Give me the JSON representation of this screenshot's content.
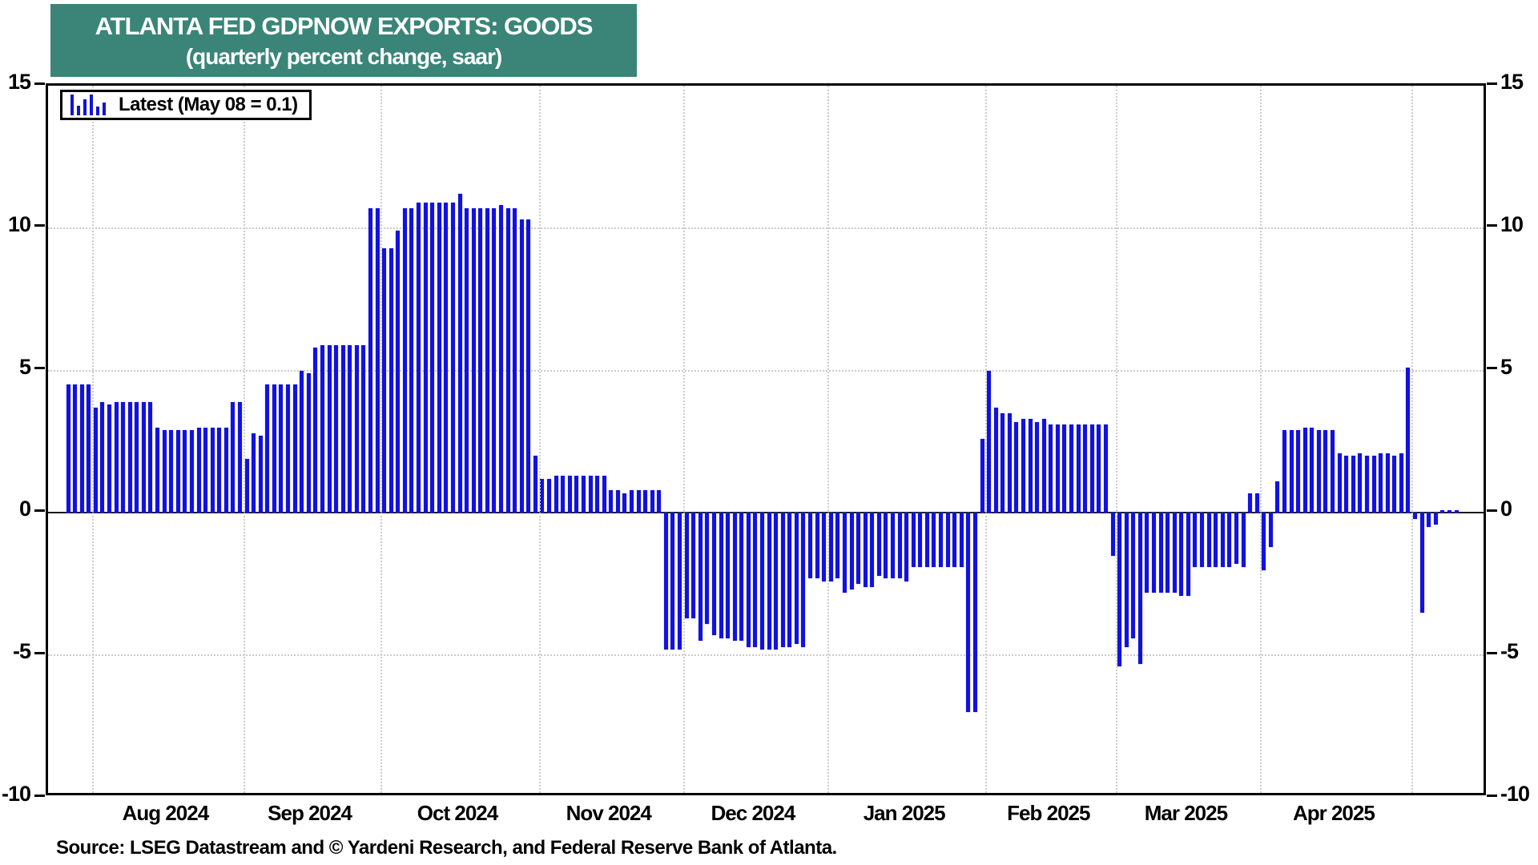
{
  "title": {
    "line1": "ATLANTA FED GDPNOW EXPORTS: GOODS",
    "line2": "(quarterly percent change, saar)"
  },
  "legend": {
    "label": "Latest (May 08 = 0.1)"
  },
  "source": "Source: LSEG Datastream and © Yardeni Research, and Federal Reserve Bank of Atlanta.",
  "colors": {
    "title_bg": "#3a8578",
    "bar": "#1111e0",
    "grid": "#cccccc",
    "frame": "#000000"
  },
  "y_axis": {
    "ticks": [
      15,
      10,
      5,
      0,
      -5,
      -10
    ],
    "min": -10,
    "max": 15
  },
  "chart_data": {
    "type": "bar",
    "title": "ATLANTA FED GDPNOW EXPORTS: GOODS",
    "subtitle": "(quarterly percent change, saar)",
    "series_name": "Latest (May 08 = 0.1)",
    "latest_point": {
      "date": "May 08",
      "value": 0.1
    },
    "xlabel": "",
    "ylabel": "quarterly percent change, saar",
    "ylim": [
      -10,
      15
    ],
    "grid": "dotted",
    "legend_position": "top-left",
    "months": [
      {
        "label": "",
        "values": [
          4.5,
          4.5,
          4.5,
          4.5
        ]
      },
      {
        "label": "Aug 2024",
        "values": [
          3.7,
          3.9,
          3.8,
          3.9,
          3.9,
          3.9,
          3.9,
          3.9,
          3.9,
          3.0,
          2.9,
          2.9,
          2.9,
          2.9,
          2.9,
          3.0,
          3.0,
          3.0,
          3.0,
          3.0,
          3.9,
          3.9
        ]
      },
      {
        "label": "Sep 2024",
        "values": [
          1.9,
          2.8,
          2.7,
          4.5,
          4.5,
          4.5,
          4.5,
          4.5,
          5.0,
          4.9,
          5.8,
          5.9,
          5.9,
          5.9,
          5.9,
          5.9,
          5.9,
          5.9,
          10.7,
          10.7
        ]
      },
      {
        "label": "Oct 2024",
        "values": [
          9.3,
          9.3,
          9.9,
          10.7,
          10.7,
          10.9,
          10.9,
          10.9,
          10.9,
          10.9,
          10.9,
          11.2,
          10.7,
          10.7,
          10.7,
          10.7,
          10.7,
          10.8,
          10.7,
          10.7,
          10.3,
          10.3,
          2.0
        ]
      },
      {
        "label": "Nov 2024",
        "values": [
          1.2,
          1.2,
          1.3,
          1.3,
          1.3,
          1.3,
          1.3,
          1.3,
          1.3,
          1.3,
          0.8,
          0.8,
          0.7,
          0.8,
          0.8,
          0.8,
          0.8,
          0.8,
          -4.8,
          -4.8,
          -4.8
        ]
      },
      {
        "label": "Dec 2024",
        "values": [
          -3.7,
          -3.7,
          -4.5,
          -3.9,
          -4.3,
          -4.4,
          -4.4,
          -4.5,
          -4.5,
          -4.7,
          -4.7,
          -4.8,
          -4.8,
          -4.8,
          -4.7,
          -4.7,
          -4.6,
          -4.7,
          -2.3,
          -2.3,
          -2.4
        ]
      },
      {
        "label": "Jan 2025",
        "values": [
          -2.4,
          -2.3,
          -2.8,
          -2.7,
          -2.5,
          -2.6,
          -2.6,
          -2.2,
          -2.3,
          -2.3,
          -2.3,
          -2.4,
          -1.9,
          -1.9,
          -1.9,
          -1.9,
          -1.9,
          -1.9,
          -1.9,
          -1.9,
          -7.0,
          -7.0,
          2.6
        ]
      },
      {
        "label": "Feb 2025",
        "values": [
          5.0,
          3.7,
          3.5,
          3.5,
          3.2,
          3.3,
          3.3,
          3.2,
          3.3,
          3.1,
          3.1,
          3.1,
          3.1,
          3.1,
          3.1,
          3.1,
          3.1,
          3.1,
          -1.5
        ]
      },
      {
        "label": "Mar 2025",
        "values": [
          -5.4,
          -4.7,
          -4.4,
          -5.3,
          -2.8,
          -2.8,
          -2.8,
          -2.8,
          -2.8,
          -2.9,
          -2.9,
          -1.9,
          -1.9,
          -1.9,
          -1.9,
          -1.9,
          -1.9,
          -1.8,
          -1.9,
          0.7,
          0.7
        ]
      },
      {
        "label": "Apr 2025",
        "values": [
          -2.0,
          -1.2,
          1.1,
          2.9,
          2.9,
          2.9,
          3.0,
          3.0,
          2.9,
          2.9,
          2.9,
          2.1,
          2.0,
          2.0,
          2.1,
          2.0,
          2.0,
          2.1,
          2.1,
          2.0,
          2.1,
          5.1
        ]
      },
      {
        "label": "",
        "values": [
          -0.2,
          -3.5,
          -0.5,
          -0.4,
          0.1,
          0.1,
          0.1
        ]
      }
    ]
  },
  "legend_icon_heights": [
    26,
    12,
    20,
    26,
    11,
    16
  ]
}
